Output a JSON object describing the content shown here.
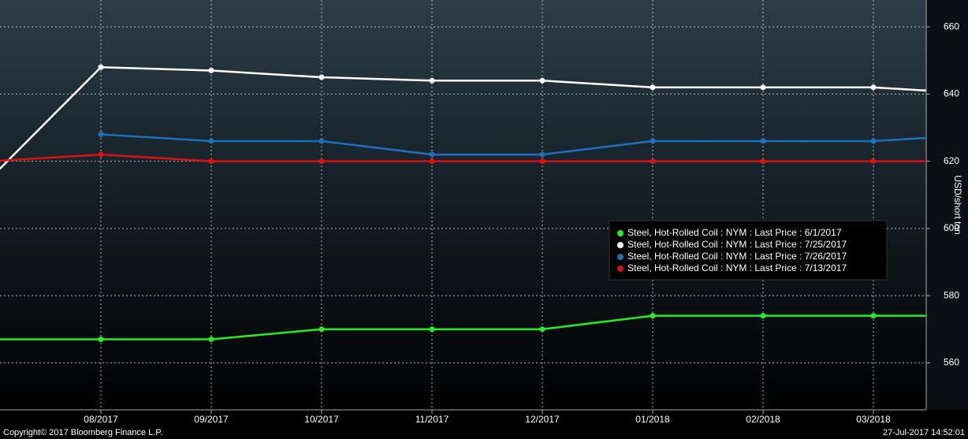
{
  "chart_data": {
    "type": "line",
    "categories": [
      null,
      "08/2017",
      "09/2017",
      "10/2017",
      "11/2017",
      "12/2017",
      "01/2018",
      "02/2018",
      "03/2018",
      null
    ],
    "series": [
      {
        "name": "Steel, Hot-Rolled Coil : NYM : Last Price : 6/1/2017",
        "color": "#22ee22",
        "values": [
          567,
          567,
          567,
          570,
          570,
          570,
          574,
          574,
          574,
          574
        ]
      },
      {
        "name": "Steel, Hot-Rolled Coil : NYM : Last Price : 7/25/2017",
        "color": "#ffffff",
        "values": [
          615,
          648,
          647,
          645,
          644,
          644,
          642,
          642,
          642,
          640
        ]
      },
      {
        "name": "Steel, Hot-Rolled Coil : NYM : Last Price : 7/26/2017",
        "color": "#1f6fbf",
        "values": [
          null,
          628,
          626,
          626,
          622,
          622,
          626,
          626,
          626,
          628
        ]
      },
      {
        "name": "Steel, Hot-Rolled Coil : NYM : Last Price : 7/13/2017",
        "color": "#dd1111",
        "values": [
          620,
          622,
          620,
          620,
          620,
          620,
          620,
          620,
          620,
          620
        ]
      }
    ],
    "y_label": "USD/short ton",
    "ylim": [
      546,
      668
    ],
    "yticks": [
      560,
      580,
      600,
      620,
      640,
      660
    ],
    "y_axis_side": "right",
    "grid": true,
    "legend_position": "center-right",
    "copyright": "Copyright© 2017 Bloomberg Finance L.P.",
    "timestamp": "27-Jul-2017 14:52:01"
  }
}
